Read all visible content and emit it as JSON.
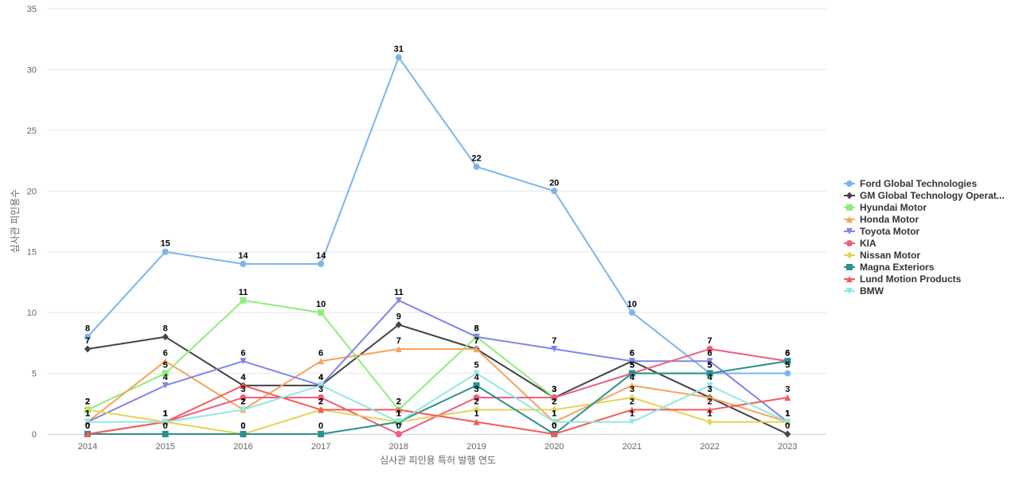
{
  "chart_data": {
    "type": "line",
    "xlabel": "심사관 피인용 특허 발행 연도",
    "ylabel": "심사관 피인용수",
    "x": [
      "2014",
      "2015",
      "2016",
      "2017",
      "2018",
      "2019",
      "2020",
      "2021",
      "2022",
      "2023"
    ],
    "ylim": [
      0,
      35
    ],
    "yticks": [
      0,
      5,
      10,
      15,
      20,
      25,
      30,
      35
    ],
    "grid": true,
    "legend_position": "right",
    "series": [
      {
        "name": "Ford Global Technologies",
        "color": "#7cb5ec",
        "marker": "circle",
        "values": [
          8,
          15,
          14,
          14,
          31,
          22,
          20,
          10,
          5,
          5
        ]
      },
      {
        "name": "GM Global Technology Operat...",
        "color": "#434348",
        "marker": "diamond",
        "values": [
          7,
          8,
          4,
          4,
          9,
          7,
          3,
          6,
          3,
          0
        ]
      },
      {
        "name": "Hyundai Motor",
        "color": "#90ed7d",
        "marker": "square",
        "values": [
          2,
          5,
          11,
          10,
          2,
          8,
          3,
          5,
          5,
          6
        ]
      },
      {
        "name": "Honda Motor",
        "color": "#f7a35c",
        "marker": "triangle",
        "values": [
          1,
          6,
          2,
          6,
          7,
          7,
          1,
          4,
          3,
          1
        ]
      },
      {
        "name": "Toyota Motor",
        "color": "#8085e9",
        "marker": "triangle-down",
        "values": [
          1,
          4,
          6,
          4,
          11,
          8,
          7,
          6,
          6,
          1
        ]
      },
      {
        "name": "KIA",
        "color": "#f15c80",
        "marker": "circle",
        "values": [
          0,
          1,
          3,
          3,
          0,
          3,
          3,
          5,
          7,
          6
        ]
      },
      {
        "name": "Nissan Motor",
        "color": "#e4d354",
        "marker": "diamond",
        "values": [
          2,
          1,
          0,
          2,
          1,
          2,
          2,
          3,
          1,
          1
        ]
      },
      {
        "name": "Magna Exteriors",
        "color": "#2b908f",
        "marker": "square",
        "values": [
          0,
          0,
          0,
          0,
          1,
          4,
          0,
          5,
          5,
          6
        ]
      },
      {
        "name": "Lund Motion Products",
        "color": "#f45b5b",
        "marker": "triangle",
        "values": [
          0,
          1,
          4,
          2,
          2,
          1,
          0,
          2,
          2,
          3
        ]
      },
      {
        "name": "BMW",
        "color": "#91e8e1",
        "marker": "triangle-down",
        "values": [
          1,
          1,
          2,
          4,
          1,
          5,
          1,
          1,
          4,
          1
        ]
      }
    ]
  }
}
